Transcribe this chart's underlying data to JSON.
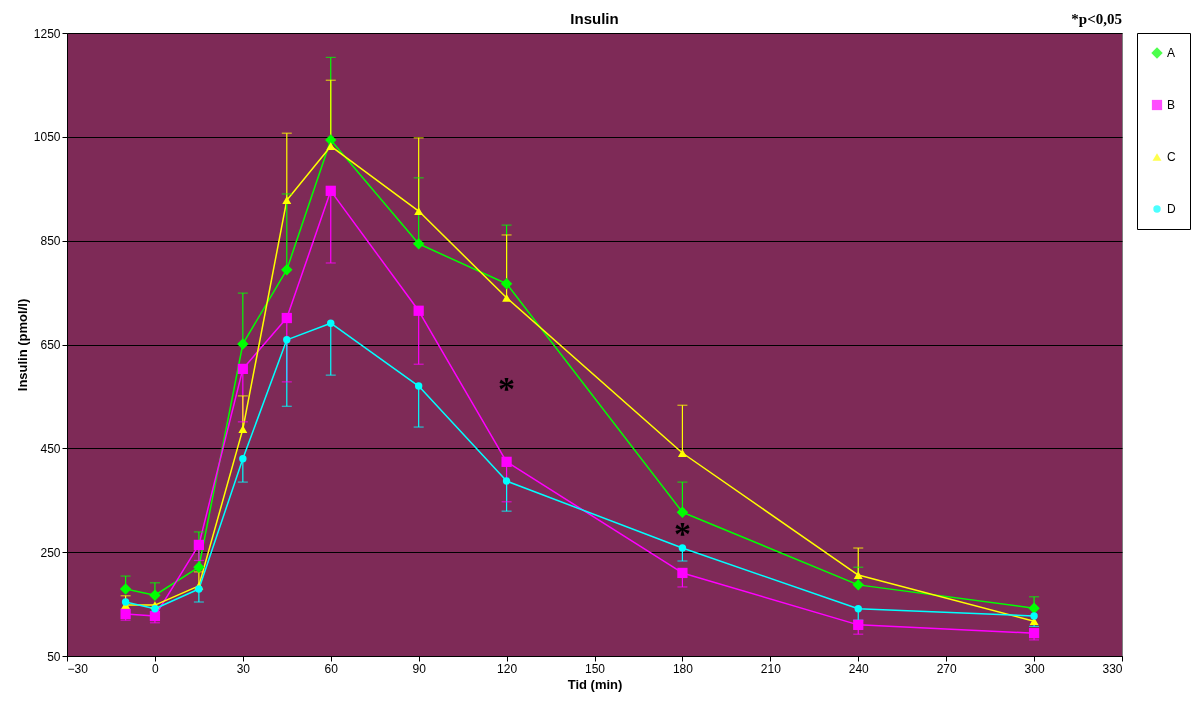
{
  "chart_data": {
    "type": "line",
    "title": "Insulin",
    "xlabel": "Tid (min)",
    "ylabel": "Insulin (pmol/l)",
    "x": [
      -10,
      0,
      15,
      30,
      45,
      60,
      90,
      120,
      180,
      240,
      300
    ],
    "xlim": [
      -30,
      330
    ],
    "xticks": [
      -30,
      0,
      30,
      60,
      90,
      120,
      150,
      180,
      210,
      240,
      270,
      300,
      330
    ],
    "ylim": [
      50,
      1250
    ],
    "yticks": [
      50,
      250,
      450,
      650,
      850,
      1050,
      1250
    ],
    "grid": "y",
    "legend": "right",
    "line_style": "solid",
    "series": [
      {
        "name": "A",
        "color": "#00ff00",
        "marker": "diamond",
        "values": [
          179,
          167,
          221,
          651,
          794,
          1044,
          844,
          767,
          327,
          187,
          142
        ],
        "errors": [
          [
            179,
            204
          ],
          [
            167,
            191
          ],
          [
            221,
            289
          ],
          [
            651,
            749
          ],
          [
            794,
            940
          ],
          [
            1044,
            1203
          ],
          [
            844,
            971
          ],
          [
            767,
            880
          ],
          [
            327,
            385
          ],
          [
            187,
            221
          ],
          [
            142,
            164
          ]
        ]
      },
      {
        "name": "B",
        "color": "#ff00ff",
        "marker": "square",
        "values": [
          131,
          127,
          264,
          603,
          701,
          946,
          715,
          424,
          210,
          110,
          94
        ],
        "errors": [
          [
            119,
            131
          ],
          [
            114,
            127
          ],
          [
            234,
            264
          ],
          [
            501,
            603
          ],
          [
            578,
            701
          ],
          [
            807,
            946
          ],
          [
            612,
            715
          ],
          [
            347,
            424
          ],
          [
            183,
            210
          ],
          [
            92,
            110
          ],
          [
            81,
            94
          ]
        ]
      },
      {
        "name": "C",
        "color": "#ffff00",
        "marker": "triangle",
        "values": [
          148,
          148,
          185,
          487,
          928,
          1032,
          907,
          740,
          441,
          206,
          117
        ],
        "errors": [
          [
            148,
            166
          ],
          null,
          [
            185,
            212
          ],
          [
            487,
            551
          ],
          [
            928,
            1057
          ],
          [
            1032,
            1159
          ],
          [
            907,
            1048
          ],
          [
            740,
            861
          ],
          [
            441,
            533
          ],
          [
            206,
            258
          ],
          null
        ]
      },
      {
        "name": "D",
        "color": "#00ffff",
        "marker": "circle",
        "values": [
          154,
          141,
          179,
          430,
          659,
          691,
          570,
          387,
          258,
          141,
          127
        ],
        "errors": [
          null,
          null,
          [
            154,
            179
          ],
          [
            385,
            430
          ],
          [
            531,
            659
          ],
          [
            591,
            691
          ],
          [
            491,
            570
          ],
          [
            329,
            387
          ],
          [
            233,
            258
          ],
          [
            119,
            141
          ],
          [
            107,
            127
          ]
        ]
      }
    ],
    "annotations": [
      "*p<0,05",
      "*",
      "*"
    ]
  }
}
